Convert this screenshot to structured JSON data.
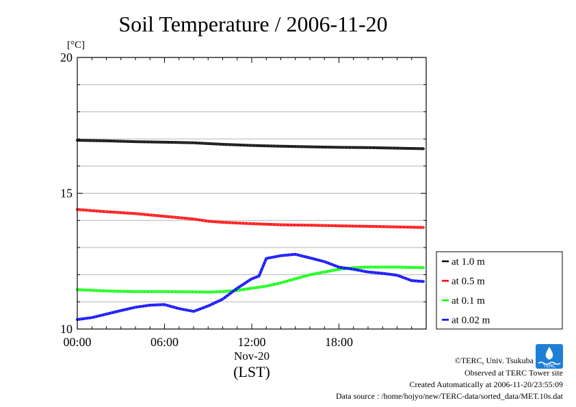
{
  "chart_data": {
    "type": "line",
    "title": "Soil Temperature / 2006-11-20",
    "y_unit": "[°C]",
    "ylim": [
      10,
      20
    ],
    "y_ticks": [
      10,
      15,
      20
    ],
    "y_gridlines": [
      11,
      12,
      13,
      14,
      15,
      16,
      17,
      18,
      19,
      20
    ],
    "xlim_hours": [
      0,
      24
    ],
    "x_ticks": [
      {
        "hour": 0,
        "label": "00:00"
      },
      {
        "hour": 6,
        "label": "06:00"
      },
      {
        "hour": 12,
        "label": "12:00"
      },
      {
        "hour": 18,
        "label": "18:00"
      }
    ],
    "x_date_label": "Nov-20",
    "x_axis_label": "(LST)",
    "grid": true,
    "legend_position": "right-bottom outside",
    "series": [
      {
        "name": "at 1.0 m",
        "color": "#000000",
        "x": [
          0,
          2,
          4,
          6,
          8,
          10,
          12,
          14,
          16,
          18,
          20,
          22,
          23.8
        ],
        "y": [
          16.95,
          16.93,
          16.9,
          16.88,
          16.86,
          16.8,
          16.76,
          16.73,
          16.71,
          16.69,
          16.68,
          16.66,
          16.64
        ]
      },
      {
        "name": "at 0.5 m",
        "color": "#ff0000",
        "x": [
          0,
          2,
          4,
          6,
          7,
          8,
          9,
          10,
          12,
          14,
          16,
          18,
          20,
          22,
          23.8
        ],
        "y": [
          14.4,
          14.32,
          14.25,
          14.15,
          14.1,
          14.05,
          13.97,
          13.93,
          13.88,
          13.84,
          13.82,
          13.8,
          13.78,
          13.76,
          13.74
        ]
      },
      {
        "name": "at 0.1 m",
        "color": "#00ff00",
        "x": [
          0,
          2,
          4,
          6,
          8,
          9,
          10,
          11,
          12,
          13,
          14,
          15,
          16,
          17,
          18,
          19,
          20,
          21,
          22,
          23.8
        ],
        "y": [
          11.45,
          11.4,
          11.38,
          11.38,
          11.37,
          11.36,
          11.38,
          11.42,
          11.5,
          11.58,
          11.7,
          11.85,
          12.0,
          12.1,
          12.2,
          12.26,
          12.28,
          12.28,
          12.28,
          12.26
        ]
      },
      {
        "name": "at 0.02 m",
        "color": "#0000ff",
        "x": [
          0,
          1,
          2,
          3,
          4,
          5,
          6,
          7,
          8,
          9,
          10,
          11,
          12,
          12.5,
          13,
          14,
          15,
          16,
          17,
          18,
          19,
          20,
          21,
          22,
          23,
          23.8
        ],
        "y": [
          10.35,
          10.42,
          10.55,
          10.68,
          10.8,
          10.88,
          10.9,
          10.75,
          10.65,
          10.85,
          11.1,
          11.5,
          11.85,
          11.95,
          12.6,
          12.7,
          12.75,
          12.62,
          12.48,
          12.28,
          12.2,
          12.1,
          12.05,
          11.98,
          11.78,
          11.75
        ]
      }
    ]
  },
  "credits": {
    "copyright": "©TERC, Univ. Tsukuba",
    "observed": "Observed at TERC Tower site",
    "created": "Created Automatically at 2006-11-20/23:55:09",
    "source": "Data source : /home/hojyo/new/TERC-data/sorted_data/MET.10s.dat",
    "logo_text": "TERC"
  }
}
